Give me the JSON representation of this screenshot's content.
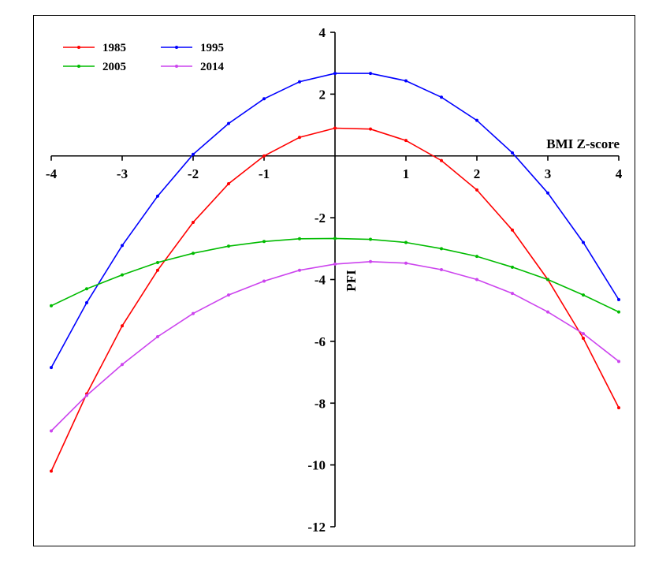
{
  "chart_data": {
    "type": "line",
    "title": "",
    "xlabel": "BMI Z-score",
    "ylabel": "PFI",
    "xlim": [
      -4,
      4
    ],
    "ylim": [
      -12,
      4
    ],
    "x_ticks": [
      -4,
      -3,
      -2,
      -1,
      1,
      2,
      3,
      4
    ],
    "x_tick_labels": [
      "-4",
      "-3",
      "-2",
      "-1",
      "1",
      "2",
      "3",
      "4"
    ],
    "y_ticks": [
      4,
      2,
      -2,
      -4,
      -6,
      -8,
      -10,
      -12
    ],
    "y_tick_labels": [
      "4",
      "2",
      "-2",
      "-4",
      "-6",
      "-8",
      "-10",
      "-12"
    ],
    "grid": false,
    "legend_position": "top-left",
    "x": [
      -4,
      -3.5,
      -3,
      -2.5,
      -2,
      -1.5,
      -1,
      -0.5,
      0,
      0.5,
      1,
      1.5,
      2,
      2.5,
      3,
      3.5,
      4
    ],
    "series": [
      {
        "name": "1985",
        "color": "#ff0000",
        "values": [
          -10.2,
          -7.7,
          -5.5,
          -3.7,
          -2.15,
          -0.9,
          0.0,
          0.6,
          0.9,
          0.87,
          0.5,
          -0.15,
          -1.1,
          -2.4,
          -4.0,
          -5.9,
          -8.15
        ]
      },
      {
        "name": "1995",
        "color": "#0000ff",
        "values": [
          -6.85,
          -4.75,
          -2.9,
          -1.3,
          0.05,
          1.05,
          1.85,
          2.4,
          2.67,
          2.67,
          2.43,
          1.9,
          1.15,
          0.1,
          -1.2,
          -2.8,
          -4.65
        ]
      },
      {
        "name": "2005",
        "color": "#00bb00",
        "values": [
          -4.85,
          -4.3,
          -3.85,
          -3.45,
          -3.15,
          -2.92,
          -2.77,
          -2.68,
          -2.67,
          -2.7,
          -2.8,
          -3.0,
          -3.25,
          -3.6,
          -4.0,
          -4.5,
          -5.05
        ]
      },
      {
        "name": "2014",
        "color": "#cc44ee",
        "values": [
          -8.9,
          -7.75,
          -6.75,
          -5.85,
          -5.1,
          -4.5,
          -4.05,
          -3.7,
          -3.5,
          -3.42,
          -3.47,
          -3.68,
          -4.0,
          -4.45,
          -5.05,
          -5.75,
          -6.65
        ]
      }
    ]
  }
}
